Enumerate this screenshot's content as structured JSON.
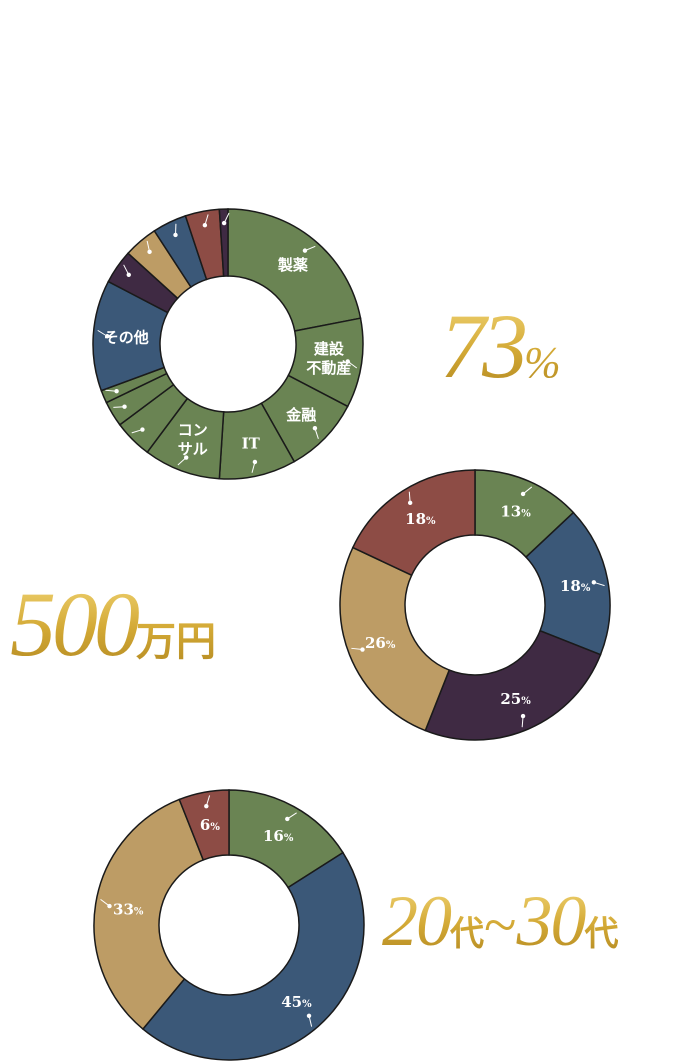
{
  "stats": {
    "percent": {
      "number": "73",
      "unit": "%"
    },
    "salary": {
      "number": "500",
      "unit": "万円"
    },
    "age": {
      "from": "20",
      "from_unit": "代",
      "tilde": "~",
      "to": "30",
      "to_unit": "代"
    }
  },
  "colors": {
    "green": "#6a8453",
    "blue": "#3b5878",
    "purple": "#3f2a43",
    "tan": "#bd9c65",
    "red": "#8d4c45",
    "gold": "#d4ac3c"
  },
  "chart_data": [
    {
      "type": "pie",
      "donut": true,
      "start": "top",
      "slices": [
        {
          "label": "製薬",
          "value": 21.5,
          "color": "green"
        },
        {
          "label": "建設\n不動産",
          "value": 10.5,
          "color": "green"
        },
        {
          "label": "金融",
          "value": 9,
          "color": "green"
        },
        {
          "label": "IT",
          "value": 9,
          "color": "green"
        },
        {
          "label": "コン\nサル",
          "value": 9,
          "color": "green"
        },
        {
          "label": "",
          "value": 4.5,
          "color": "green"
        },
        {
          "label": "",
          "value": 3,
          "color": "green"
        },
        {
          "label": "",
          "value": 1.5,
          "color": "green"
        },
        {
          "label": "その他",
          "value": 13,
          "color": "blue"
        },
        {
          "label": "",
          "value": 4,
          "color": "purple"
        },
        {
          "label": "",
          "value": 4,
          "color": "tan"
        },
        {
          "label": "",
          "value": 4,
          "color": "blue"
        },
        {
          "label": "",
          "value": 4,
          "color": "red"
        },
        {
          "label": "",
          "value": 1,
          "color": "purple"
        }
      ]
    },
    {
      "type": "pie",
      "donut": true,
      "start": "top",
      "slices": [
        {
          "label": "13",
          "value": 13,
          "color": "green"
        },
        {
          "label": "18",
          "value": 18,
          "color": "blue"
        },
        {
          "label": "25",
          "value": 25,
          "color": "purple"
        },
        {
          "label": "26",
          "value": 26,
          "color": "tan"
        },
        {
          "label": "18",
          "value": 18,
          "color": "red"
        }
      ],
      "unit": "%"
    },
    {
      "type": "pie",
      "donut": true,
      "start": "top",
      "slices": [
        {
          "label": "16",
          "value": 16,
          "color": "green"
        },
        {
          "label": "45",
          "value": 45,
          "color": "blue"
        },
        {
          "label": "33",
          "value": 33,
          "color": "tan"
        },
        {
          "label": "6",
          "value": 6,
          "color": "red"
        }
      ],
      "unit": "%"
    }
  ]
}
